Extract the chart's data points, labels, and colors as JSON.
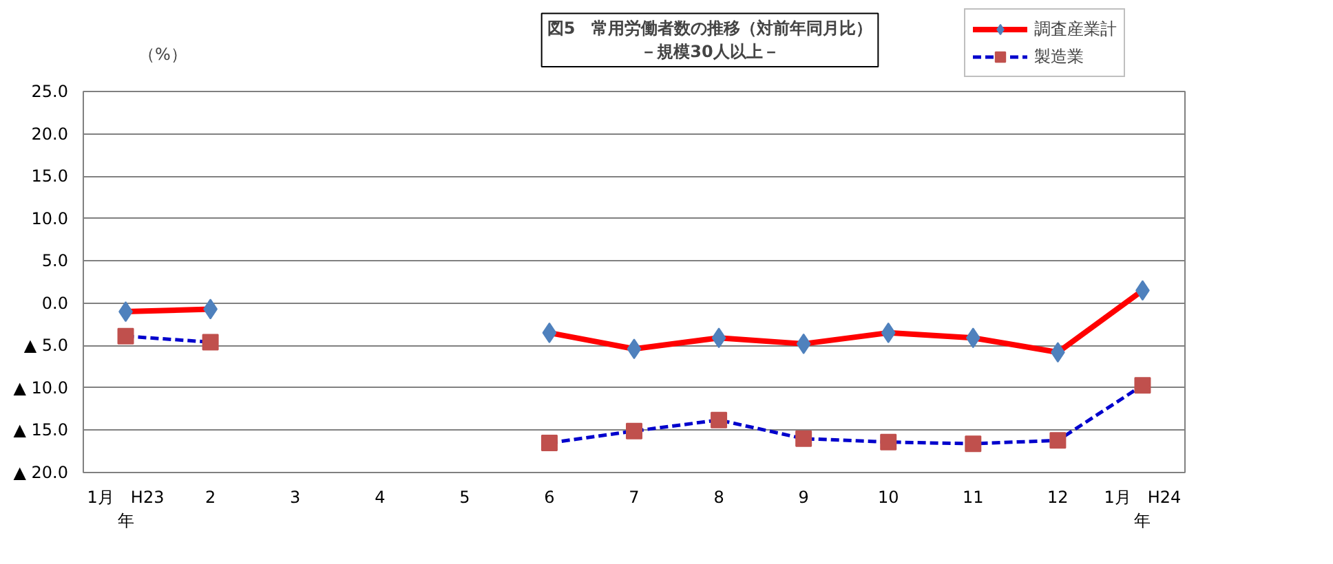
{
  "chart_data": {
    "type": "line",
    "title": "図5　常用労働者数の推移（対前年同月比）",
    "subtitle": "－規模30人以上－",
    "ylabel": "（%）",
    "categories": [
      "1月　H23\n年",
      "2",
      "3",
      "4",
      "5",
      "6",
      "7",
      "8",
      "9",
      "10",
      "11",
      "12",
      "1月　H24\n年"
    ],
    "series": [
      {
        "name": "調査産業計",
        "color": "#ff0000",
        "marker": "diamond",
        "colors": [
          "#4f81bd",
          "#4f81bd",
          "#4f81bd",
          "#4f81bd",
          "#4f81bd",
          "#4f81bd",
          "#4f81bd",
          "#4f81bd",
          "#4f81bd",
          "#4f81bd",
          "#4f81bd",
          "#4f81bd",
          "#4f81bd"
        ],
        "line_style": "solid",
        "values": [
          -1.0,
          -0.7,
          null,
          null,
          null,
          -3.5,
          -5.4,
          -4.1,
          -4.8,
          -3.5,
          -4.1,
          -5.8,
          1.5
        ]
      },
      {
        "name": "製造業",
        "color": "#0000cc",
        "marker": "square",
        "colors": [
          "#c0504d",
          "#c0504d",
          "#c0504d",
          "#c0504d",
          "#c0504d",
          "#c0504d",
          "#c0504d",
          "#c0504d",
          "#c0504d",
          "#c0504d",
          "#c0504d",
          "#c0504d",
          "#c0504d"
        ],
        "line_style": "dashed",
        "values": [
          -3.9,
          -4.6,
          null,
          null,
          null,
          -16.5,
          -15.1,
          -13.8,
          -16.0,
          -16.4,
          -16.6,
          -16.2,
          -9.7
        ]
      }
    ],
    "ylim": [
      -20,
      25
    ],
    "yticks": [
      {
        "value": -20,
        "label": "▲ 20.0"
      },
      {
        "value": -15,
        "label": "▲ 15.0"
      },
      {
        "value": -10,
        "label": "▲ 10.0"
      },
      {
        "value": -5,
        "label": "▲ 5.0"
      },
      {
        "value": 0,
        "label": "0.0"
      },
      {
        "value": 5,
        "label": "5.0"
      },
      {
        "value": 10,
        "label": "10.0"
      },
      {
        "value": 15,
        "label": "15.0"
      },
      {
        "value": 20,
        "label": "20.0"
      },
      {
        "value": 25,
        "label": "25.0"
      }
    ],
    "grid": "y",
    "legend": "top right"
  }
}
